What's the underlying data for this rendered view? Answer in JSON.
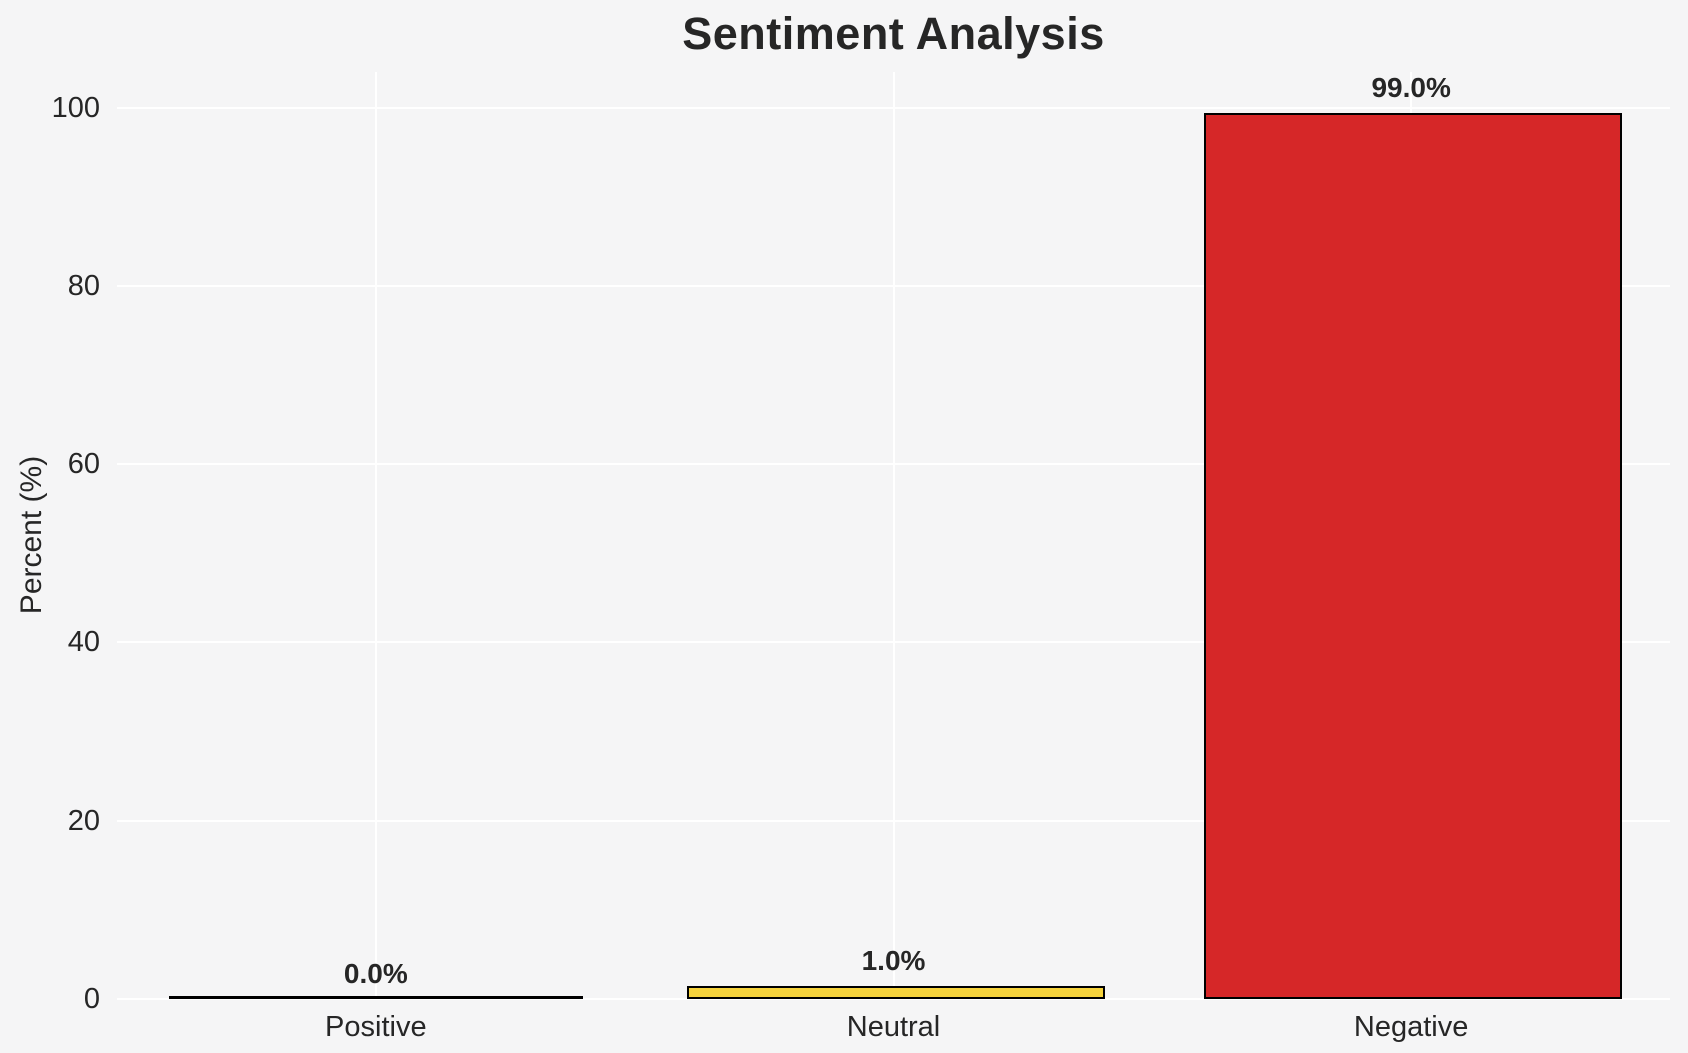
{
  "chart_data": {
    "type": "bar",
    "title": "Sentiment Analysis",
    "xlabel": "",
    "ylabel": "Percent (%)",
    "categories": [
      "Positive",
      "Neutral",
      "Negative"
    ],
    "values": [
      0.0,
      1.0,
      99.0
    ],
    "value_labels": [
      "0.0%",
      "1.0%",
      "99.0%"
    ],
    "yticks": [
      0,
      20,
      40,
      60,
      80,
      100
    ],
    "ylim": [
      0,
      104
    ],
    "grid": true,
    "legend": false,
    "bar_colors": [
      null,
      "#f6d33c",
      "#d62728"
    ],
    "bar_edge_color": "#000000",
    "background_color": "#f5f5f6",
    "grid_color": "#ffffff",
    "text_color": "#262626"
  }
}
